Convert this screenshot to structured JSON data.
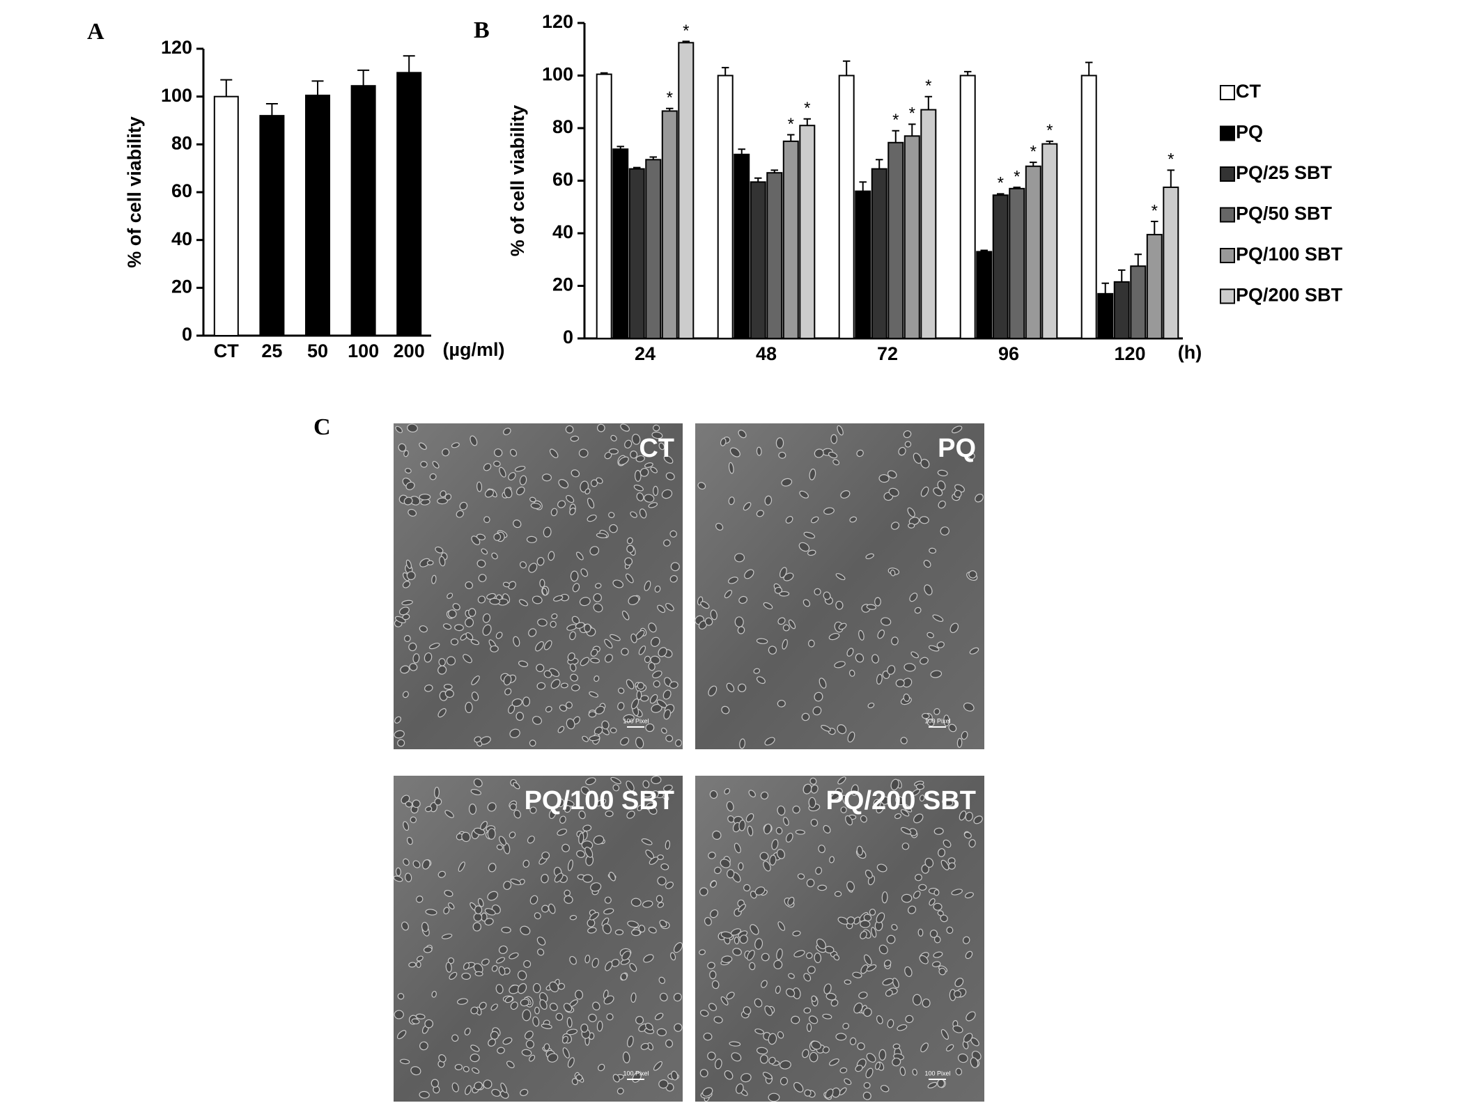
{
  "chart_data": [
    {
      "type": "bar",
      "panel": "A",
      "ylabel": "% of cell viability",
      "x_unit": "(µg/ml)",
      "categories": [
        "CT",
        "25",
        "50",
        "100",
        "200"
      ],
      "values": [
        100,
        92,
        100.5,
        104.5,
        110
      ],
      "errors": [
        7,
        5,
        6,
        6.5,
        7
      ],
      "colors": [
        "#ffffff",
        "#000000",
        "#000000",
        "#000000",
        "#000000"
      ],
      "ylim": [
        0,
        120
      ],
      "yticks": [
        0,
        20,
        40,
        60,
        80,
        100,
        120
      ]
    },
    {
      "type": "bar",
      "panel": "B",
      "ylabel": "% of cell viability",
      "x_unit": "(h)",
      "categories": [
        "24",
        "48",
        "72",
        "96",
        "120"
      ],
      "series": [
        {
          "name": "CT",
          "color": "#ffffff",
          "values": [
            100.5,
            100,
            100,
            100,
            100
          ],
          "errors": [
            0.5,
            3,
            5.5,
            1.5,
            5
          ],
          "significance": [
            null,
            null,
            null,
            null,
            null
          ]
        },
        {
          "name": "PQ",
          "color": "#000000",
          "values": [
            72,
            70,
            56,
            33,
            17
          ],
          "errors": [
            1,
            2,
            3.5,
            0.5,
            4
          ],
          "significance": [
            null,
            null,
            null,
            null,
            null
          ]
        },
        {
          "name": "PQ/25 SBT",
          "color": "#333333",
          "values": [
            64.5,
            59.5,
            64.5,
            54.5,
            21.5
          ],
          "errors": [
            0.5,
            1.5,
            3.5,
            0.5,
            4.5
          ],
          "significance": [
            null,
            null,
            null,
            "*",
            null
          ]
        },
        {
          "name": "PQ/50 SBT",
          "color": "#666666",
          "values": [
            68,
            63,
            74.5,
            57,
            27.5
          ],
          "errors": [
            1,
            1,
            4.5,
            0.5,
            4.5
          ],
          "significance": [
            null,
            null,
            "*",
            "*",
            null
          ]
        },
        {
          "name": "PQ/100 SBT",
          "color": "#999999",
          "values": [
            86.5,
            75,
            77,
            65.5,
            39.5
          ],
          "errors": [
            1,
            2.5,
            4.5,
            1.5,
            5
          ],
          "significance": [
            "*",
            "*",
            "*",
            "*",
            "*"
          ]
        },
        {
          "name": "PQ/200 SBT",
          "color": "#cccccc",
          "values": [
            112.5,
            81,
            87,
            74,
            57.5
          ],
          "errors": [
            0.5,
            2.5,
            5,
            1,
            6.5
          ],
          "significance": [
            "*",
            "*",
            "*",
            "*",
            "*"
          ]
        }
      ],
      "ylim": [
        0,
        120
      ],
      "yticks": [
        0,
        20,
        40,
        60,
        80,
        100,
        120
      ],
      "legend": "right"
    }
  ],
  "panel_c": {
    "panel": "C",
    "scale_bar": "100 Pixel",
    "images": [
      "CT",
      "PQ",
      "PQ/100 SBT",
      "PQ/200 SBT"
    ]
  }
}
